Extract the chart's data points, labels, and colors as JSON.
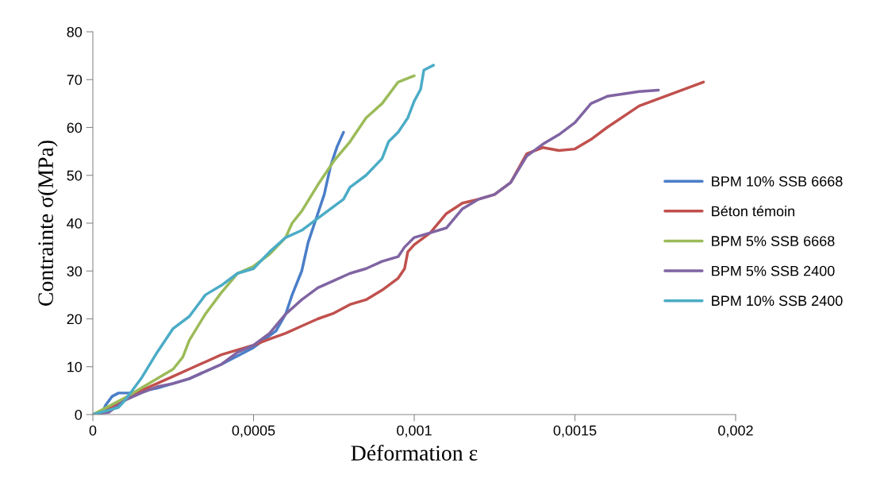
{
  "chart_data": {
    "type": "line",
    "xlabel": "Déformation ε",
    "ylabel": "Contrainte σ(MPa)",
    "xlim": [
      0,
      0.002
    ],
    "xticks": [
      0,
      {
        "value": 0.0005,
        "label": "0,0005"
      },
      {
        "value": 0.001,
        "label": "0,001"
      },
      {
        "value": 0.0015,
        "label": "0,0015"
      },
      {
        "value": 0.002,
        "label": "0,002"
      }
    ],
    "ylim": [
      0,
      80
    ],
    "yticks": [
      0,
      10,
      20,
      30,
      40,
      50,
      60,
      70,
      80
    ],
    "grid": false,
    "legend": "right",
    "line_style": "solid",
    "marker": "none",
    "series": [
      {
        "name": "BPM 10% SSB 6668",
        "color": "#4a7ec8",
        "x": [
          0,
          3e-05,
          4e-05,
          6e-05,
          8e-05,
          0.00012,
          0.0002,
          0.0003,
          0.0004,
          0.0005,
          0.00057,
          0.0006,
          0.00062,
          0.00065,
          0.00067,
          0.0007,
          0.00072,
          0.00074,
          0.00076,
          0.00078
        ],
        "values": [
          0,
          0.5,
          2,
          3.8,
          4.5,
          4.5,
          5.5,
          7.5,
          10.5,
          14,
          17.5,
          21,
          25,
          30,
          36,
          42,
          46,
          52,
          56,
          59
        ]
      },
      {
        "name": "Béton témoin",
        "color": "#c0504d",
        "x": [
          0,
          6e-05,
          0.0001,
          0.00015,
          0.0002,
          0.00025,
          0.0003,
          0.00035,
          0.0004,
          0.00045,
          0.0005,
          0.00055,
          0.0006,
          0.00065,
          0.0007,
          0.00075,
          0.0008,
          0.00085,
          0.0009,
          0.00095,
          0.00097,
          0.00098,
          0.001,
          0.00105,
          0.0011,
          0.00115,
          0.0012,
          0.00125,
          0.0013,
          0.00135,
          0.0014,
          0.00145,
          0.0015,
          0.00155,
          0.0016,
          0.0017,
          0.0018,
          0.0019
        ],
        "values": [
          0,
          1.5,
          3,
          5,
          6.5,
          8,
          9.5,
          11,
          12.5,
          13.5,
          14.5,
          15.8,
          17,
          18.5,
          20,
          21.2,
          23,
          24,
          26,
          28.5,
          30.5,
          34,
          35.5,
          38,
          42,
          44.2,
          45,
          46,
          48.5,
          54.5,
          55.8,
          55.2,
          55.5,
          57.5,
          60,
          64.5,
          67,
          69.5
        ]
      },
      {
        "name": "BPM 5% SSB 6668",
        "color": "#9bbb59",
        "x": [
          0,
          0.0001,
          0.00015,
          0.0002,
          0.00025,
          0.00028,
          0.0003,
          0.00035,
          0.0004,
          0.00045,
          0.0005,
          0.00055,
          0.0006,
          0.00062,
          0.00065,
          0.0007,
          0.00075,
          0.0008,
          0.00085,
          0.0009,
          0.00095,
          0.001
        ],
        "values": [
          0,
          3.5,
          5.5,
          7.5,
          9.5,
          12,
          15.5,
          21,
          25.5,
          29.5,
          31,
          33.5,
          37,
          40,
          42.5,
          48,
          53,
          57,
          62,
          65,
          69.5,
          70.8
        ]
      },
      {
        "name": "BPM 5% SSB 2400",
        "color": "#8064a2",
        "x": [
          0,
          5e-05,
          0.0001,
          0.00015,
          0.0002,
          0.00025,
          0.0003,
          0.00035,
          0.0004,
          0.00045,
          0.0005,
          0.00055,
          0.0006,
          0.00065,
          0.0007,
          0.00075,
          0.0008,
          0.00085,
          0.0009,
          0.00095,
          0.00097,
          0.001,
          0.00105,
          0.0011,
          0.00115,
          0.0012,
          0.00125,
          0.0013,
          0.00135,
          0.0014,
          0.00145,
          0.0015,
          0.00155,
          0.0016,
          0.0017,
          0.00176
        ],
        "values": [
          0,
          0.5,
          3,
          4.5,
          5.8,
          6.5,
          7.5,
          9,
          10.5,
          13,
          14.5,
          17,
          21,
          24,
          26.5,
          28,
          29.5,
          30.5,
          32,
          33,
          35,
          37,
          38,
          39,
          43,
          45,
          46,
          48.5,
          54,
          56.5,
          58.5,
          61,
          65,
          66.5,
          67.5,
          67.8
        ]
      },
      {
        "name": "BPM 10% SSB 2400",
        "color": "#4bacc6",
        "x": [
          0,
          8e-05,
          0.0001,
          0.00015,
          0.0002,
          0.00025,
          0.0003,
          0.00035,
          0.0004,
          0.00045,
          0.0005,
          0.00055,
          0.0006,
          0.00065,
          0.0007,
          0.00075,
          0.00078,
          0.0008,
          0.00085,
          0.0009,
          0.00092,
          0.00095,
          0.00098,
          0.001,
          0.00102,
          0.00103,
          0.00106
        ],
        "values": [
          0,
          1.5,
          3,
          7.5,
          13,
          18,
          20.5,
          25,
          27,
          29.5,
          30.5,
          34,
          37,
          38.5,
          41,
          43.5,
          45,
          47.5,
          50,
          53.5,
          57,
          59,
          62,
          65.5,
          68,
          72,
          73
        ]
      }
    ]
  }
}
